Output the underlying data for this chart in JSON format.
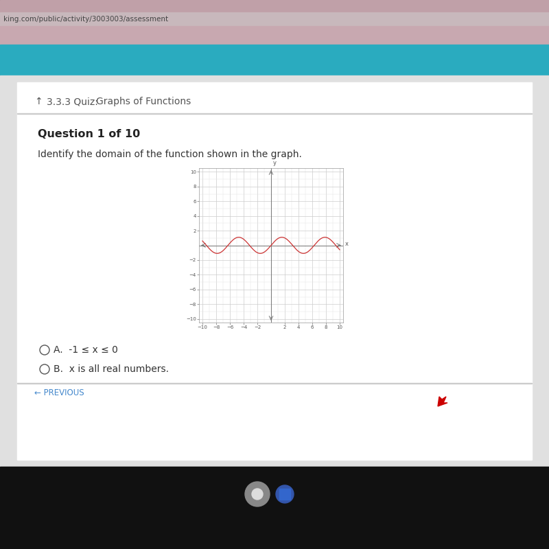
{
  "bg_color": "#111111",
  "page_bg": "#d8d8d8",
  "white_card": "#ffffff",
  "teal_color": "#2aabbf",
  "pink_color": "#c8a0a8",
  "url_bar_color": "#c0b8b8",
  "url_text": "king.com/public/activity/3003003/assessment",
  "title_text": "3.3.3 Quiz:",
  "title_bold": "Graphs of Functions",
  "question_label": "Question 1 of 10",
  "question_text": "Identify the domain of the function shown in the graph.",
  "option_a": "-1 ≤ x ≤ 0",
  "option_b": "x is all real numbers.",
  "prev_text": "← PREVIOUS",
  "wave_color": "#cc3333",
  "wave_amplitude": 1.1,
  "wave_freq": 1.0,
  "axis_color": "#777777",
  "grid_color": "#cccccc",
  "minor_grid_color": "#e0e0e0",
  "tick_fontsize": 5,
  "chrome_color1": "#888888",
  "chrome_color2": "#4455aa"
}
